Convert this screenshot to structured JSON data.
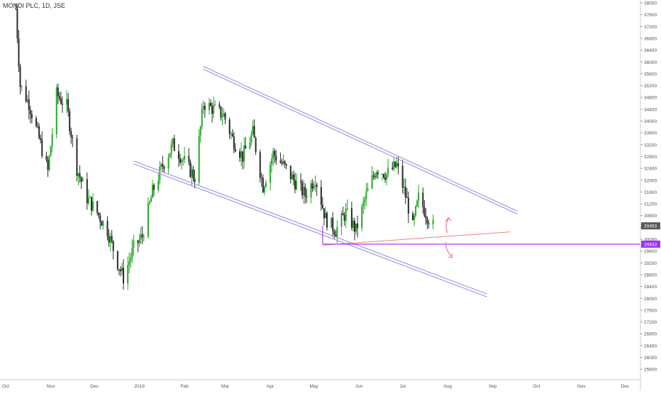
{
  "symbol_title": "MONDI PLC, 1D, JSE",
  "colors": {
    "up": "#26a726",
    "down": "#2a2a2a",
    "channel": "#a89be0",
    "support": "#a020f0",
    "trend_red": "#f08080",
    "arrow": "#f07aa0",
    "axis_text": "#555555",
    "current_bg": "#5a5a5a",
    "level_bg": "#9b30ff"
  },
  "chart_data": {
    "type": "candlestick",
    "title": "MONDI PLC, 1D, JSE",
    "x_tick_labels": [
      "Oct",
      "Nov",
      "Dec",
      "2019",
      "Feb",
      "Mar",
      "Apr",
      "May",
      "Jun",
      "Jul",
      "Aug",
      "Sep",
      "Oct",
      "Nov",
      "Dec"
    ],
    "y_tick_labels": [
      "25600",
      "26000",
      "26400",
      "26800",
      "27200",
      "27600",
      "28000",
      "28400",
      "28800",
      "29200",
      "29600",
      "30000",
      "30400",
      "30800",
      "31200",
      "31600",
      "32000",
      "32400",
      "32800",
      "33200",
      "33600",
      "34000",
      "34400",
      "34800",
      "35200",
      "35600",
      "36000",
      "36400",
      "36800",
      "37200",
      "37600",
      "38000"
    ],
    "ylim": [
      25300,
      38100
    ],
    "current_price_label": "30453",
    "support_level_label": "29833",
    "current_price": 30453,
    "support_level": 29833,
    "price_path": [
      [
        "2018-10-08",
        37800
      ],
      [
        "2018-10-11",
        35200
      ],
      [
        "2018-10-17",
        34600
      ],
      [
        "2018-10-24",
        33400
      ],
      [
        "2018-10-30",
        32300
      ],
      [
        "2018-11-05",
        34900
      ],
      [
        "2018-11-12",
        34500
      ],
      [
        "2018-11-19",
        32400
      ],
      [
        "2018-11-26",
        31400
      ],
      [
        "2018-12-03",
        30900
      ],
      [
        "2018-12-10",
        30300
      ],
      [
        "2018-12-17",
        29200
      ],
      [
        "2018-12-21",
        28700
      ],
      [
        "2018-12-28",
        29700
      ],
      [
        "2019-01-03",
        30100
      ],
      [
        "2019-01-10",
        31600
      ],
      [
        "2019-01-17",
        32500
      ],
      [
        "2019-01-24",
        33200
      ],
      [
        "2019-01-31",
        32700
      ],
      [
        "2019-02-08",
        32100
      ],
      [
        "2019-02-14",
        34600
      ],
      [
        "2019-02-21",
        34400
      ],
      [
        "2019-02-28",
        34200
      ],
      [
        "2019-03-06",
        33400
      ],
      [
        "2019-03-13",
        32800
      ],
      [
        "2019-03-20",
        33600
      ],
      [
        "2019-03-27",
        31800
      ],
      [
        "2019-04-03",
        32900
      ],
      [
        "2019-04-10",
        32500
      ],
      [
        "2019-04-17",
        32000
      ],
      [
        "2019-04-25",
        31500
      ],
      [
        "2019-05-02",
        32100
      ],
      [
        "2019-05-09",
        30700
      ],
      [
        "2019-05-16",
        30300
      ],
      [
        "2019-05-23",
        30900
      ],
      [
        "2019-05-30",
        30300
      ],
      [
        "2019-06-06",
        31500
      ],
      [
        "2019-06-13",
        32400
      ],
      [
        "2019-06-20",
        32200
      ],
      [
        "2019-06-27",
        32500
      ],
      [
        "2019-07-04",
        31300
      ],
      [
        "2019-07-08",
        30400
      ],
      [
        "2019-07-12",
        31400
      ],
      [
        "2019-07-19",
        30700
      ],
      [
        "2019-07-22",
        30453
      ]
    ],
    "drawings": [
      {
        "name": "channel-upper",
        "from": [
          "2019-02-14",
          35800
        ],
        "to": [
          "2019-09-18",
          30900
        ]
      },
      {
        "name": "channel-lower",
        "from": [
          "2018-12-28",
          32600
        ],
        "to": [
          "2019-08-28",
          28100
        ]
      },
      {
        "name": "trendline-red",
        "from": [
          "2019-05-07",
          29800
        ],
        "to": [
          "2019-09-13",
          30250
        ]
      },
      {
        "name": "support-line",
        "from": [
          "2019-05-07",
          29833
        ],
        "to": [
          "2020-01-31",
          29833
        ]
      }
    ],
    "legend": "none",
    "grid": false
  }
}
